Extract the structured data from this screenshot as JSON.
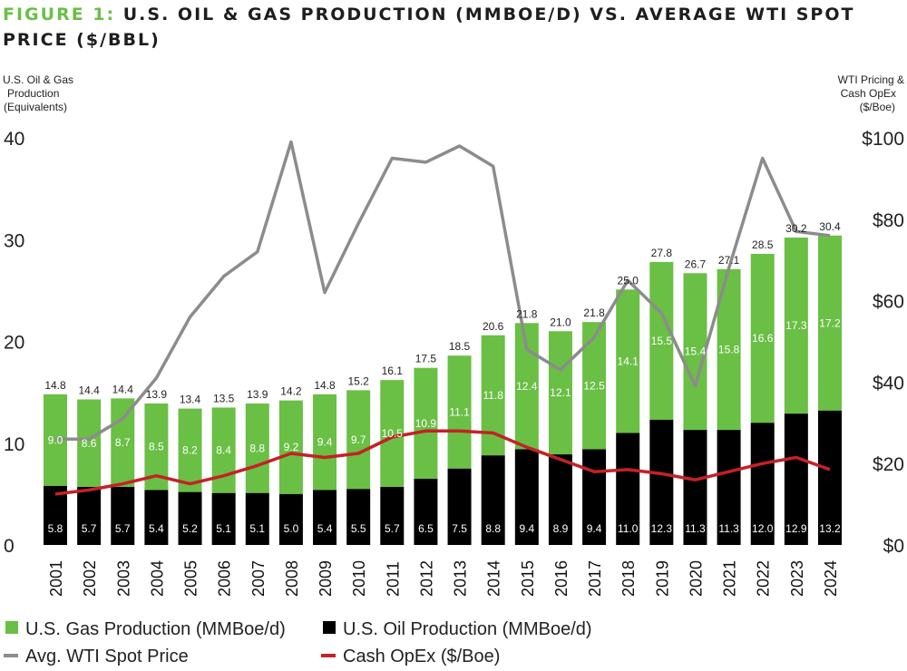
{
  "title_prefix": "FIGURE 1:",
  "title_rest": "U.S. OIL & GAS PRODUCTION (MMBOE/D) VS. AVERAGE WTI SPOT PRICE ($/BBL)",
  "colors": {
    "gas": "#6abf45",
    "oil": "#000000",
    "wti": "#8c8c8c",
    "opex": "#c42127",
    "title_accent": "#6abf45"
  },
  "chart_data": {
    "type": "bar",
    "stacked": true,
    "categories": [
      "2001",
      "2002",
      "2003",
      "2004",
      "2005",
      "2006",
      "2007",
      "2008",
      "2009",
      "2010",
      "2011",
      "2012",
      "2013",
      "2014",
      "2015",
      "2016",
      "2017",
      "2018",
      "2019",
      "2020",
      "2021",
      "2022",
      "2023",
      "2024"
    ],
    "series": [
      {
        "name": "U.S. Oil Production (MMBoe/d)",
        "type": "bar",
        "axis": "left",
        "values": [
          5.8,
          5.7,
          5.7,
          5.4,
          5.2,
          5.1,
          5.1,
          5.0,
          5.4,
          5.5,
          5.7,
          6.5,
          7.5,
          8.8,
          9.4,
          8.9,
          9.4,
          11.0,
          12.3,
          11.3,
          11.3,
          12.0,
          12.9,
          13.2
        ]
      },
      {
        "name": "U.S. Gas Production (MMBoe/d)",
        "type": "bar",
        "axis": "left",
        "values": [
          9.0,
          8.6,
          8.7,
          8.5,
          8.2,
          8.4,
          8.8,
          9.2,
          9.4,
          9.7,
          10.5,
          10.9,
          11.1,
          11.8,
          12.4,
          12.1,
          12.5,
          14.1,
          15.5,
          15.4,
          15.8,
          16.6,
          17.3,
          17.2
        ]
      },
      {
        "name": "Avg. WTI Spot Price",
        "type": "line",
        "axis": "right",
        "values": [
          26,
          26,
          31,
          41,
          56,
          66,
          72,
          99,
          62,
          79,
          95,
          94,
          98,
          93,
          48,
          43,
          51,
          65,
          57,
          39,
          68,
          95,
          77,
          76
        ]
      },
      {
        "name": "Cash OpEx ($/Boe)",
        "type": "line",
        "axis": "right",
        "values": [
          12.5,
          13.5,
          15,
          17,
          15,
          17,
          19.5,
          22.5,
          21.5,
          22.5,
          26.5,
          28,
          28,
          27.5,
          24,
          21,
          18,
          18.5,
          17.5,
          16,
          18,
          20,
          21.5,
          18.5
        ]
      }
    ],
    "totals": [
      "14.8",
      "14.4",
      "14.4",
      "13.9",
      "13.4",
      "13.5",
      "13.9",
      "14.2",
      "14.8",
      "15.2",
      "16.1",
      "17.5",
      "18.5",
      "20.6",
      "21.8",
      "21.0",
      "21.8",
      "25.0",
      "27.8",
      "26.7",
      "27.1",
      "28.5",
      "30.2",
      "30.4"
    ],
    "oil_labels": [
      "5.8",
      "5.7",
      "5.7",
      "5.4",
      "5.2",
      "5.1",
      "5.1",
      "5.0",
      "5.4",
      "5.5",
      "5.7",
      "6.5",
      "7.5",
      "8.8",
      "9.4",
      "8.9",
      "9.4",
      "11.0",
      "12.3",
      "11.3",
      "11.3",
      "12.0",
      "12.9",
      "13.2"
    ],
    "gas_labels": [
      "9.0",
      "8.6",
      "8.7",
      "8.5",
      "8.2",
      "8.4",
      "8.8",
      "9.2",
      "9.4",
      "9.7",
      "10.5",
      "10.9",
      "11.1",
      "11.8",
      "12.4",
      "12.1",
      "12.5",
      "14.1",
      "15.5",
      "15.4",
      "15.8",
      "16.6",
      "17.3",
      "17.2"
    ],
    "ylim_left": [
      0,
      40
    ],
    "ylim_right": [
      0,
      100
    ],
    "left_ticks": [
      "0",
      "10",
      "20",
      "30",
      "40"
    ],
    "right_ticks": [
      "$0",
      "$20",
      "$40",
      "$60",
      "$80",
      "$100"
    ],
    "left_axis_label": [
      "U.S. Oil & Gas",
      "Production",
      "(Equivalents)"
    ],
    "right_axis_label": [
      "WTI Pricing &",
      "Cash OpEx",
      "($/Boe)"
    ],
    "legend": {
      "gas": "U.S. Gas Production (MMBoe/d)",
      "oil": "U.S. Oil Production (MMBoe/d)",
      "wti": "Avg. WTI Spot Price",
      "opex": "Cash OpEx ($/Boe)"
    }
  }
}
